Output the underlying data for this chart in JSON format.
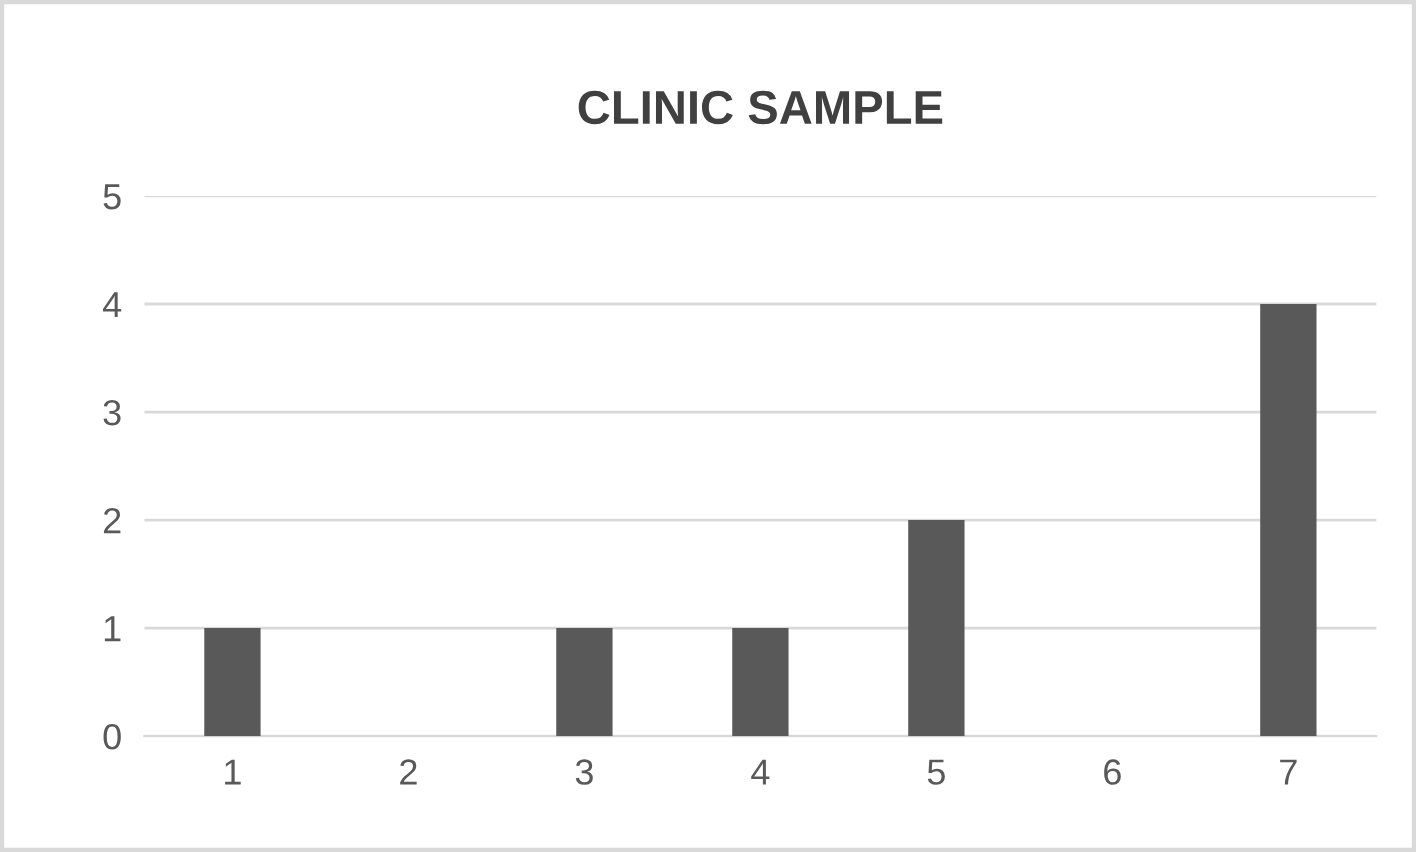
{
  "chart_data": {
    "type": "bar",
    "title": "CLINIC SAMPLE",
    "categories": [
      "1",
      "2",
      "3",
      "4",
      "5",
      "6",
      "7"
    ],
    "values": [
      1,
      0,
      1,
      1,
      2,
      0,
      4
    ],
    "color": "#595959",
    "ylim": [
      0,
      5
    ],
    "yticks": [
      0,
      1,
      2,
      3,
      4,
      5
    ],
    "grid": "y"
  }
}
